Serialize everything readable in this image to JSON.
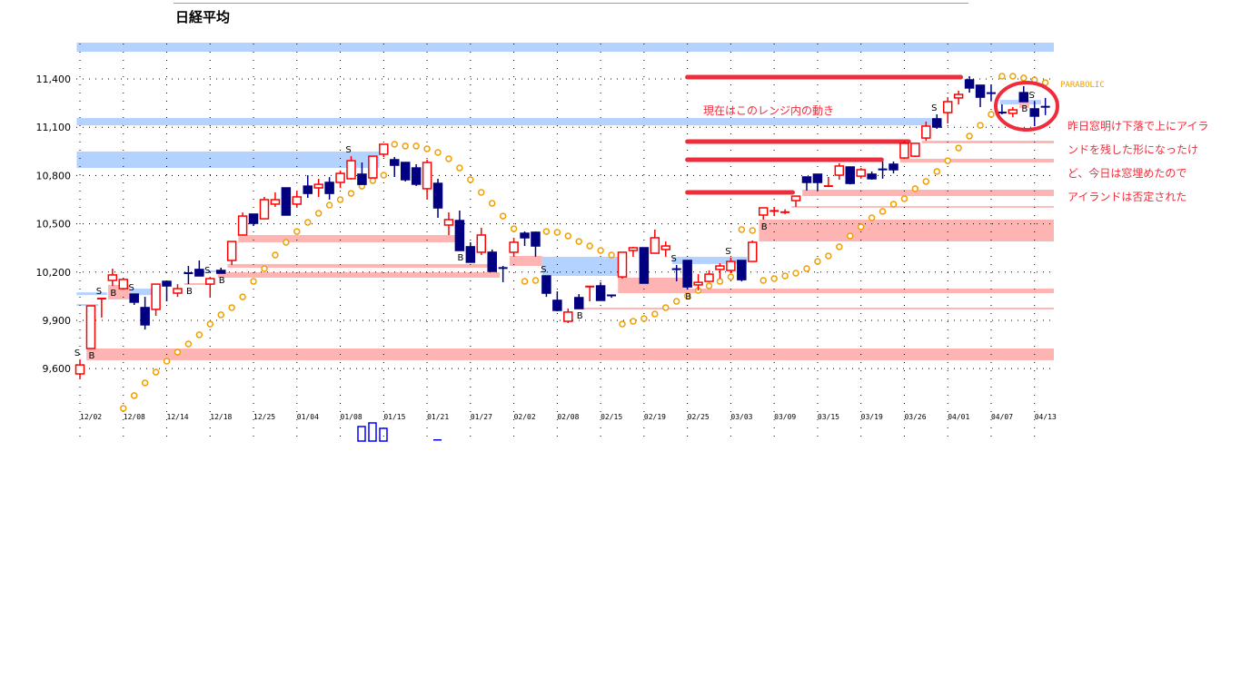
{
  "title": "日経平均",
  "chart_data": {
    "type": "candlestick",
    "ylim": [
      9480,
      11650
    ],
    "y_ticks": [
      {
        "value": 11400,
        "label": "11,400"
      },
      {
        "value": 11100,
        "label": "11,100"
      },
      {
        "value": 10800,
        "label": "10,800"
      },
      {
        "value": 10500,
        "label": "10,500"
      },
      {
        "value": 10200,
        "label": "10,200"
      },
      {
        "value": 9900,
        "label": "9,900"
      },
      {
        "value": 9600,
        "label": "9,600"
      }
    ],
    "x_ticks": [
      "12/02",
      "12/08",
      "12/14",
      "12/18",
      "12/25",
      "01/04",
      "01/08",
      "01/15",
      "01/21",
      "01/27",
      "02/02",
      "02/08",
      "02/15",
      "02/19",
      "02/25",
      "03/03",
      "03/09",
      "03/15",
      "03/19",
      "03/26",
      "04/01",
      "04/07",
      "04/13"
    ],
    "x_tick_every": 4,
    "grid": true,
    "colors": {
      "up": "#ff0000",
      "down": "#000080",
      "parabolic": "#f0a000",
      "support_zone": "#ffb4b4",
      "resistance_zone": "#b4d2ff",
      "annotation": "#ee2c3c"
    },
    "candles_ohlc": [
      [
        9567,
        9657,
        9533,
        9623
      ],
      [
        9725,
        9990,
        9725,
        9990
      ],
      [
        10035,
        10040,
        9917,
        10035
      ],
      [
        10148,
        10221,
        10114,
        10182
      ],
      [
        10097,
        10165,
        10097,
        10154
      ],
      [
        10063,
        10063,
        9996,
        10013
      ],
      [
        9979,
        10046,
        9843,
        9872
      ],
      [
        9968,
        10125,
        9928,
        10125
      ],
      [
        10142,
        10142,
        10018,
        10114
      ],
      [
        10069,
        10125,
        10046,
        10097
      ],
      [
        10193,
        10238,
        10125,
        10190
      ],
      [
        10216,
        10272,
        10176,
        10176
      ],
      [
        10125,
        10170,
        10041,
        10159
      ],
      [
        10210,
        10227,
        10193,
        10193
      ],
      [
        10272,
        10390,
        10244,
        10390
      ],
      [
        10430,
        10570,
        10430,
        10548
      ],
      [
        10560,
        10560,
        10486,
        10503
      ],
      [
        10531,
        10667,
        10531,
        10650
      ],
      [
        10622,
        10695,
        10605,
        10650
      ],
      [
        10723,
        10723,
        10554,
        10554
      ],
      [
        10622,
        10706,
        10605,
        10667
      ],
      [
        10734,
        10802,
        10661,
        10689
      ],
      [
        10723,
        10780,
        10667,
        10745
      ],
      [
        10757,
        10790,
        10650,
        10689
      ],
      [
        10757,
        10830,
        10723,
        10813
      ],
      [
        10780,
        10920,
        10775,
        10892
      ],
      [
        10808,
        10881,
        10745,
        10745
      ],
      [
        10785,
        10920,
        10785,
        10920
      ],
      [
        10932,
        10994,
        10915,
        10994
      ],
      [
        10898,
        10915,
        10791,
        10864
      ],
      [
        10881,
        10881,
        10763,
        10774
      ],
      [
        10847,
        10870,
        10735,
        10746
      ],
      [
        10718,
        10898,
        10655,
        10881
      ],
      [
        10751,
        10780,
        10537,
        10599
      ],
      [
        10492,
        10571,
        10430,
        10526
      ],
      [
        10520,
        10582,
        10334,
        10334
      ],
      [
        10357,
        10385,
        10261,
        10261
      ],
      [
        10323,
        10475,
        10306,
        10430
      ],
      [
        10323,
        10340,
        10204,
        10204
      ],
      [
        10225,
        10238,
        10137,
        10218
      ],
      [
        10323,
        10413,
        10295,
        10385
      ],
      [
        10441,
        10452,
        10362,
        10413
      ],
      [
        10447,
        10452,
        10295,
        10362
      ],
      [
        10176,
        10176,
        10046,
        10069
      ],
      [
        10024,
        10080,
        9956,
        9962
      ],
      [
        9894,
        9973,
        9883,
        9951
      ],
      [
        10041,
        10063,
        9973,
        9973
      ],
      [
        10105,
        10110,
        10018,
        10110
      ],
      [
        10114,
        10136,
        10024,
        10024
      ],
      [
        10055,
        10055,
        10040,
        10050
      ],
      [
        10170,
        10323,
        10159,
        10323
      ],
      [
        10334,
        10357,
        10295,
        10351
      ],
      [
        10351,
        10351,
        10131,
        10131
      ],
      [
        10317,
        10464,
        10317,
        10413
      ],
      [
        10340,
        10390,
        10295,
        10362
      ],
      [
        10218,
        10244,
        10142,
        10214
      ],
      [
        10272,
        10272,
        10091,
        10108
      ],
      [
        10120,
        10187,
        10086,
        10136
      ],
      [
        10142,
        10210,
        10142,
        10187
      ],
      [
        10216,
        10255,
        10159,
        10238
      ],
      [
        10210,
        10290,
        10193,
        10266
      ],
      [
        10272,
        10272,
        10142,
        10153
      ],
      [
        10266,
        10396,
        10266,
        10385
      ],
      [
        10554,
        10599,
        10526,
        10599
      ],
      [
        10575,
        10605,
        10548,
        10580
      ],
      [
        10570,
        10590,
        10560,
        10572
      ],
      [
        10644,
        10672,
        10605,
        10672
      ],
      [
        10791,
        10791,
        10706,
        10757
      ],
      [
        10808,
        10808,
        10706,
        10757
      ],
      [
        10730,
        10791,
        10730,
        10734
      ],
      [
        10802,
        10876,
        10774,
        10859
      ],
      [
        10853,
        10853,
        10745,
        10751
      ],
      [
        10796,
        10847,
        10780,
        10836
      ],
      [
        10808,
        10825,
        10774,
        10780
      ],
      [
        10838,
        10887,
        10780,
        10834
      ],
      [
        10870,
        10887,
        10813,
        10836
      ],
      [
        10909,
        11016,
        10909,
        11000
      ],
      [
        10920,
        11000,
        10915,
        11000
      ],
      [
        11033,
        11135,
        11016,
        11107
      ],
      [
        11152,
        11180,
        11090,
        11101
      ],
      [
        11191,
        11287,
        11124,
        11259
      ],
      [
        11282,
        11327,
        11242,
        11304
      ],
      [
        11394,
        11417,
        11315,
        11344
      ],
      [
        11361,
        11361,
        11225,
        11287
      ],
      [
        11312,
        11366,
        11265,
        11308
      ],
      [
        11191,
        11242,
        11180,
        11180
      ],
      [
        11186,
        11225,
        11163,
        11208
      ],
      [
        11315,
        11355,
        11259,
        11259
      ],
      [
        11214,
        11259,
        11107,
        11169
      ],
      [
        11227,
        11282,
        11175,
        11223
      ]
    ],
    "parabolic": {
      "label": "PARABOLIC",
      "start_index": 4,
      "values": [
        9353,
        9432,
        9511,
        9578,
        9646,
        9702,
        9753,
        9810,
        9877,
        9934,
        9979,
        10046,
        10142,
        10221,
        10306,
        10385,
        10452,
        10509,
        10565,
        10616,
        10650,
        10689,
        10734,
        10768,
        10802,
        10994,
        10983,
        10983,
        10966,
        10943,
        10904,
        10847,
        10774,
        10695,
        10627,
        10548,
        10469,
        10142,
        10148,
        10452,
        10447,
        10424,
        10390,
        10362,
        10334,
        10306,
        9877,
        9894,
        9911,
        9939,
        9979,
        10018,
        10052,
        10086,
        10114,
        10142,
        10170,
        10464,
        10458,
        10148,
        10159,
        10176,
        10193,
        10221,
        10266,
        10300,
        10357,
        10424,
        10481,
        10537,
        10577,
        10622,
        10656,
        10718,
        10763,
        10825,
        10892,
        10971,
        11045,
        11112,
        11180,
        11417,
        11417,
        11406,
        11394,
        11377
      ]
    },
    "zones": [
      {
        "from": -0.3,
        "to": 90,
        "high": 11626,
        "low": 11569,
        "kind": "resistance"
      },
      {
        "from": -0.3,
        "to": 78.9,
        "high": 11157,
        "low": 11112,
        "kind": "resistance"
      },
      {
        "from": -0.3,
        "to": 27.6,
        "high": 10949,
        "low": 10847,
        "kind": "resistance"
      },
      {
        "from": 0.6,
        "to": 90,
        "high": 9725,
        "low": 9652,
        "kind": "support"
      },
      {
        "from": -0.3,
        "to": 2.5,
        "high": 10074,
        "low": 10057,
        "kind": "resistance"
      },
      {
        "from": -0.3,
        "to": 1.7,
        "high": 10001,
        "low": 9990,
        "kind": "resistance"
      },
      {
        "from": 2.6,
        "to": 4.6,
        "high": 10120,
        "low": 10030,
        "kind": "support"
      },
      {
        "from": 4.6,
        "to": 6.6,
        "high": 10097,
        "low": 10057,
        "kind": "resistance"
      },
      {
        "from": 9.6,
        "to": 11.9,
        "high": 10131,
        "low": 10120,
        "kind": "support"
      },
      {
        "from": 11.6,
        "to": 12.7,
        "high": 10210,
        "low": 10199,
        "kind": "resistance"
      },
      {
        "from": 12.7,
        "to": 38.7,
        "high": 10199,
        "low": 10165,
        "kind": "support"
      },
      {
        "from": 13.6,
        "to": 37.6,
        "high": 10250,
        "low": 10227,
        "kind": "support"
      },
      {
        "from": 14.6,
        "to": 34.6,
        "high": 10430,
        "low": 10385,
        "kind": "support"
      },
      {
        "from": 39.6,
        "to": 42.6,
        "high": 10300,
        "low": 10238,
        "kind": "support"
      },
      {
        "from": 42.6,
        "to": 49.6,
        "high": 10295,
        "low": 10176,
        "kind": "resistance"
      },
      {
        "from": 45.6,
        "to": 90,
        "high": 9979,
        "low": 9968,
        "kind": "support"
      },
      {
        "from": 49.6,
        "to": 56,
        "high": 10165,
        "low": 10069,
        "kind": "support"
      },
      {
        "from": 56,
        "to": 90,
        "high": 10097,
        "low": 10069,
        "kind": "support"
      },
      {
        "from": 54.6,
        "to": 61.5,
        "high": 10295,
        "low": 10250,
        "kind": "resistance"
      },
      {
        "from": 62.6,
        "to": 90,
        "high": 10526,
        "low": 10390,
        "kind": "support"
      },
      {
        "from": 65.6,
        "to": 90,
        "high": 10610,
        "low": 10600,
        "kind": "support"
      },
      {
        "from": 66.6,
        "to": 90,
        "high": 10712,
        "low": 10672,
        "kind": "support"
      },
      {
        "from": 75.6,
        "to": 90,
        "high": 10904,
        "low": 10881,
        "kind": "support"
      },
      {
        "from": 77.6,
        "to": 90,
        "high": 11016,
        "low": 11000,
        "kind": "support"
      },
      {
        "from": 84.8,
        "to": 88.6,
        "high": 11270,
        "low": 11242,
        "kind": "resistance"
      },
      {
        "from": 86.6,
        "to": 87.5,
        "high": 11259,
        "low": 11220,
        "kind": "support"
      }
    ],
    "signals": [
      {
        "i": 0,
        "t": "S"
      },
      {
        "i": 1,
        "t": "B"
      },
      {
        "i": 2,
        "t": "S"
      },
      {
        "i": 3,
        "t": "B"
      },
      {
        "i": 5,
        "t": "S"
      },
      {
        "i": 10,
        "t": "B"
      },
      {
        "i": 12,
        "t": "S"
      },
      {
        "i": 13,
        "t": "B"
      },
      {
        "i": 25,
        "t": "S"
      },
      {
        "i": 35,
        "t": "B"
      },
      {
        "i": 43,
        "t": "S"
      },
      {
        "i": 46,
        "t": "B"
      },
      {
        "i": 55,
        "t": "S"
      },
      {
        "i": 56,
        "t": "B"
      },
      {
        "i": 60,
        "t": "S"
      },
      {
        "i": 63,
        "t": "B"
      },
      {
        "i": 79,
        "t": "S"
      },
      {
        "i": 87,
        "t": "B"
      },
      {
        "i": 88,
        "t": "S"
      }
    ],
    "annotation_lines": [
      {
        "value": 11411,
        "from": 56,
        "to": 81.2
      },
      {
        "value": 11011,
        "from": 56,
        "to": 76.4
      },
      {
        "value": 10898,
        "from": 56,
        "to": 73.9
      },
      {
        "value": 10695,
        "from": 56,
        "to": 65.7
      }
    ]
  },
  "annotations": {
    "range_note": "現在はこのレンジ内の動き",
    "island_note": [
      "昨日窓明け下落で上にアイラ",
      "ンドを残した形になったけ",
      "ど、今日は窓埋めたので",
      "アイランドは否定された"
    ]
  }
}
